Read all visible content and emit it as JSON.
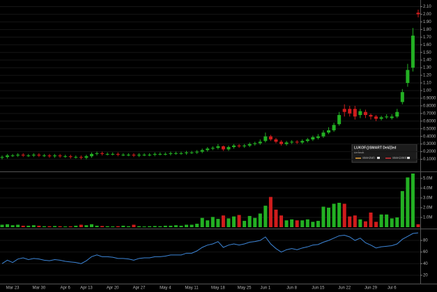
{
  "chart_data": [
    {
      "type": "candlestick",
      "categories": [
        null,
        null,
        "Mar 23",
        null,
        null,
        null,
        null,
        "Mar 30",
        null,
        null,
        null,
        null,
        "Apr 6",
        null,
        null,
        null,
        "Apr 13",
        null,
        null,
        null,
        null,
        "Apr 20",
        null,
        null,
        null,
        null,
        "Apr 27",
        null,
        null,
        null,
        null,
        "May 4",
        null,
        null,
        null,
        null,
        "May 11",
        null,
        null,
        null,
        null,
        "May 18",
        null,
        null,
        null,
        null,
        "May 25",
        null,
        null,
        null,
        "Jun 1",
        null,
        null,
        null,
        null,
        "Jun 8",
        null,
        null,
        null,
        null,
        "Jun 15",
        null,
        null,
        null,
        null,
        "Jun 22",
        null,
        null,
        null,
        null,
        "Jun 29",
        null,
        null,
        null,
        "Jul 6",
        null,
        null,
        null,
        null,
        null
      ],
      "open": [
        0.12,
        0.13,
        0.15,
        0.15,
        0.16,
        0.15,
        0.15,
        0.16,
        0.15,
        0.15,
        0.14,
        0.15,
        0.14,
        0.14,
        0.13,
        0.13,
        0.12,
        0.14,
        0.17,
        0.18,
        0.17,
        0.17,
        0.17,
        0.16,
        0.16,
        0.16,
        0.15,
        0.16,
        0.16,
        0.16,
        0.17,
        0.17,
        0.17,
        0.18,
        0.18,
        0.18,
        0.19,
        0.19,
        0.2,
        0.22,
        0.24,
        0.25,
        0.27,
        0.23,
        0.26,
        0.28,
        0.27,
        0.28,
        0.3,
        0.31,
        0.34,
        0.4,
        0.36,
        0.33,
        0.3,
        0.32,
        0.33,
        0.32,
        0.34,
        0.36,
        0.38,
        0.4,
        0.45,
        0.48,
        0.56,
        0.76,
        0.76,
        0.76,
        0.68,
        0.72,
        0.68,
        0.66,
        0.63,
        0.65,
        0.64,
        0.66,
        0.85,
        1.1,
        1.3,
        2.02
      ],
      "high": [
        0.15,
        0.17,
        0.17,
        0.18,
        0.18,
        0.17,
        0.18,
        0.18,
        0.17,
        0.17,
        0.17,
        0.17,
        0.16,
        0.16,
        0.15,
        0.15,
        0.16,
        0.19,
        0.2,
        0.2,
        0.19,
        0.19,
        0.19,
        0.18,
        0.18,
        0.18,
        0.18,
        0.18,
        0.18,
        0.19,
        0.19,
        0.19,
        0.2,
        0.2,
        0.2,
        0.21,
        0.21,
        0.22,
        0.24,
        0.26,
        0.27,
        0.3,
        0.28,
        0.28,
        0.3,
        0.3,
        0.3,
        0.32,
        0.33,
        0.36,
        0.45,
        0.42,
        0.38,
        0.35,
        0.34,
        0.35,
        0.35,
        0.36,
        0.38,
        0.41,
        0.43,
        0.48,
        0.52,
        0.58,
        0.72,
        0.82,
        0.8,
        0.8,
        0.76,
        0.75,
        0.7,
        0.68,
        0.67,
        0.69,
        0.69,
        0.76,
        1.02,
        1.35,
        1.82,
        2.06
      ],
      "low": [
        0.1,
        0.11,
        0.13,
        0.13,
        0.13,
        0.13,
        0.13,
        0.13,
        0.13,
        0.12,
        0.12,
        0.12,
        0.12,
        0.11,
        0.11,
        0.1,
        0.1,
        0.12,
        0.15,
        0.15,
        0.15,
        0.15,
        0.14,
        0.14,
        0.14,
        0.13,
        0.13,
        0.14,
        0.14,
        0.14,
        0.15,
        0.15,
        0.15,
        0.16,
        0.16,
        0.16,
        0.17,
        0.17,
        0.18,
        0.2,
        0.22,
        0.23,
        0.21,
        0.21,
        0.24,
        0.25,
        0.25,
        0.26,
        0.28,
        0.29,
        0.32,
        0.34,
        0.31,
        0.28,
        0.28,
        0.3,
        0.3,
        0.3,
        0.32,
        0.34,
        0.36,
        0.38,
        0.43,
        0.46,
        0.54,
        0.66,
        0.66,
        0.62,
        0.64,
        0.64,
        0.62,
        0.6,
        0.61,
        0.63,
        0.62,
        0.64,
        0.82,
        1.05,
        1.25,
        1.96
      ],
      "close": [
        0.13,
        0.15,
        0.15,
        0.16,
        0.15,
        0.15,
        0.16,
        0.15,
        0.15,
        0.14,
        0.15,
        0.14,
        0.14,
        0.13,
        0.13,
        0.12,
        0.14,
        0.17,
        0.18,
        0.17,
        0.17,
        0.17,
        0.16,
        0.16,
        0.16,
        0.15,
        0.16,
        0.16,
        0.16,
        0.17,
        0.17,
        0.17,
        0.18,
        0.18,
        0.18,
        0.19,
        0.19,
        0.2,
        0.22,
        0.24,
        0.25,
        0.27,
        0.23,
        0.26,
        0.28,
        0.27,
        0.28,
        0.3,
        0.31,
        0.33,
        0.4,
        0.36,
        0.33,
        0.3,
        0.32,
        0.33,
        0.32,
        0.34,
        0.36,
        0.39,
        0.4,
        0.45,
        0.48,
        0.55,
        0.68,
        0.72,
        0.7,
        0.66,
        0.73,
        0.68,
        0.66,
        0.63,
        0.65,
        0.66,
        0.66,
        0.72,
        0.98,
        1.27,
        1.72,
        2.0
      ],
      "up_color": "#23b023",
      "down_color": "#d01c1c",
      "ylim": [
        -0.05,
        2.15
      ],
      "yticks": [
        {
          "value": 0.1,
          "label": "0.1000"
        },
        {
          "value": 0.2,
          "label": "0.2000"
        },
        {
          "value": 0.3,
          "label": "0.3000"
        },
        {
          "value": 0.4,
          "label": "0.4000"
        },
        {
          "value": 0.5,
          "label": "0.5000"
        },
        {
          "value": 0.6,
          "label": "0.6000"
        },
        {
          "value": 0.7,
          "label": "0.7000"
        },
        {
          "value": 0.8,
          "label": "0.8000"
        },
        {
          "value": 0.9,
          "label": "0.9000"
        },
        {
          "value": 1.0,
          "label": "1.00"
        },
        {
          "value": 1.1,
          "label": "1.10"
        },
        {
          "value": 1.2,
          "label": "1.20"
        },
        {
          "value": 1.3,
          "label": "1.30"
        },
        {
          "value": 1.4,
          "label": "1.40"
        },
        {
          "value": 1.5,
          "label": "1.50"
        },
        {
          "value": 1.6,
          "label": "1.60"
        },
        {
          "value": 1.7,
          "label": "1.70"
        },
        {
          "value": 1.8,
          "label": "1.80"
        },
        {
          "value": 1.9,
          "label": "1.90"
        },
        {
          "value": 2.0,
          "label": "2.00"
        },
        {
          "value": 2.1,
          "label": "2.10"
        }
      ],
      "grid": true
    },
    {
      "type": "bar",
      "values": [
        250000,
        300000,
        200000,
        250000,
        150000,
        150000,
        200000,
        150000,
        100000,
        100000,
        120000,
        100000,
        80000,
        90000,
        150000,
        250000,
        200000,
        300000,
        150000,
        120000,
        100000,
        80000,
        100000,
        150000,
        100000,
        250000,
        100000,
        80000,
        100000,
        120000,
        100000,
        150000,
        150000,
        200000,
        150000,
        250000,
        250000,
        350000,
        950000,
        700000,
        1050000,
        850000,
        1200000,
        900000,
        1100000,
        1250000,
        650000,
        1150000,
        950000,
        1400000,
        2200000,
        3100000,
        1800000,
        1200000,
        700000,
        800000,
        700000,
        700000,
        800000,
        550000,
        650000,
        2100000,
        2000000,
        2400000,
        2500000,
        2400000,
        1100000,
        1200000,
        800000,
        600000,
        1500000,
        550000,
        1300000,
        1300000,
        900000,
        1000000,
        3700000,
        5100000,
        5500000,
        300000
      ],
      "up_color": "#23b023",
      "down_color": "#d01c1c",
      "ylim": [
        0,
        5570000
      ],
      "yticks": [
        {
          "value": 1000000,
          "label": "1.0M"
        },
        {
          "value": 2000000,
          "label": "2.0M"
        },
        {
          "value": 3000000,
          "label": "3.0M"
        },
        {
          "value": 4000000,
          "label": "4.0M"
        },
        {
          "value": 5000000,
          "label": "5.0M"
        }
      ],
      "grid": true
    },
    {
      "type": "line",
      "values": [
        40,
        46,
        42,
        48,
        50,
        47,
        49,
        48,
        46,
        45,
        47,
        46,
        44,
        43,
        42,
        40,
        45,
        52,
        55,
        52,
        52,
        51,
        49,
        49,
        48,
        46,
        49,
        50,
        50,
        52,
        52,
        53,
        55,
        55,
        55,
        58,
        58,
        62,
        68,
        72,
        74,
        78,
        68,
        72,
        74,
        72,
        74,
        77,
        78,
        80,
        86,
        74,
        66,
        60,
        64,
        66,
        64,
        67,
        69,
        72,
        73,
        77,
        80,
        84,
        88,
        89,
        86,
        80,
        84,
        76,
        72,
        67,
        69,
        70,
        71,
        74,
        82,
        87,
        92,
        93
      ],
      "color": "#3d86d8",
      "ylim": [
        8,
        98
      ],
      "yticks": [
        20,
        40,
        60,
        80
      ],
      "grid": true
    }
  ],
  "overlay": {
    "title": "LUKOF@SMART Delayed",
    "subtitle": "Default",
    "items": [
      {
        "name": "SMA(50)",
        "color": "#e8a33c"
      },
      {
        "name": "SMA(200)",
        "color": "#d8333a"
      }
    ]
  }
}
